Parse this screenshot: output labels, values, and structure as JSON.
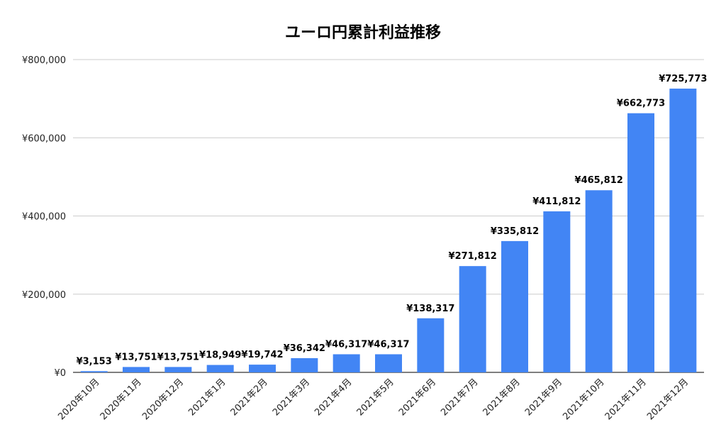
{
  "chart_data": {
    "type": "bar",
    "title": "ユーロ円累計利益推移",
    "xlabel": "",
    "ylabel": "",
    "ylim": [
      0,
      800000
    ],
    "yticks": [
      0,
      200000,
      400000,
      600000,
      800000
    ],
    "ytick_labels": [
      "¥0",
      "¥200,000",
      "¥400,000",
      "¥600,000",
      "¥800,000"
    ],
    "grid": true,
    "legend": "none",
    "bar_color": "#4285F4",
    "categories": [
      "2020年10月",
      "2020年11月",
      "2020年12月",
      "2021年1月",
      "2021年2月",
      "2021年3月",
      "2021年4月",
      "2021年5月",
      "2021年6月",
      "2021年7月",
      "2021年8月",
      "2021年9月",
      "2021年10月",
      "2021年11月",
      "2021年12月"
    ],
    "values": [
      3153,
      13751,
      13751,
      18949,
      19742,
      36342,
      46317,
      46317,
      138317,
      271812,
      335812,
      411812,
      465812,
      662773,
      725773
    ],
    "data_labels": [
      "¥3,153",
      "¥13,751",
      "¥13,751",
      "¥18,949",
      "¥19,742",
      "¥36,342",
      "¥46,317",
      "¥46,317",
      "¥138,317",
      "¥271,812",
      "¥335,812",
      "¥411,812",
      "¥465,812",
      "¥662,773",
      "¥725,773"
    ]
  }
}
